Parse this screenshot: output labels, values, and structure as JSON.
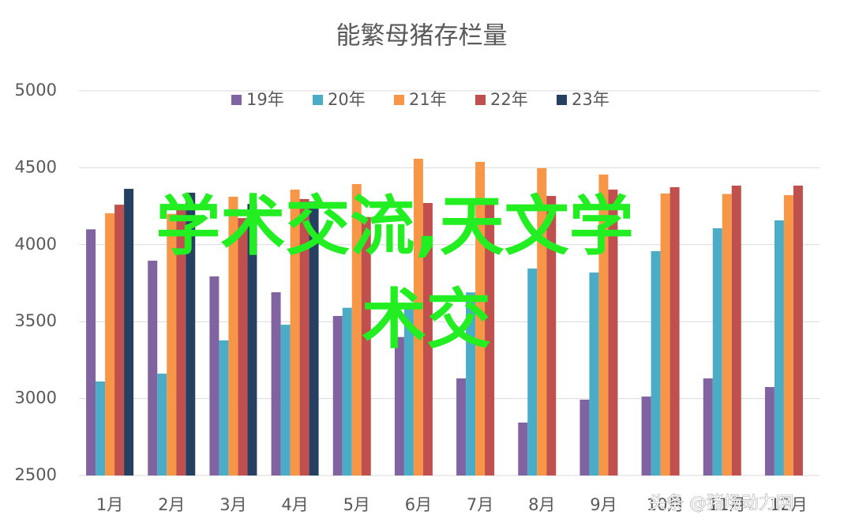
{
  "chart_data": {
    "type": "bar",
    "title": "能繁母猪存栏量",
    "categories": [
      "1月",
      "2月",
      "3月",
      "4月",
      "5月",
      "6月",
      "7月",
      "8月",
      "9月",
      "10月",
      "11月",
      "12月"
    ],
    "series": [
      {
        "name": "19年",
        "color": "#8064a2",
        "values": [
          4100,
          3896,
          3794,
          3691,
          3537,
          3400,
          3131,
          2844,
          2993,
          3013,
          3131,
          3075
        ]
      },
      {
        "name": "20年",
        "color": "#4bacc6",
        "values": [
          3111,
          3162,
          3378,
          3480,
          3590,
          3590,
          3690,
          3845,
          3819,
          3958,
          4107,
          4158
        ]
      },
      {
        "name": "21年",
        "color": "#f79646",
        "values": [
          4204,
          4200,
          4312,
          4358,
          4394,
          4559,
          4538,
          4497,
          4456,
          4333,
          4330,
          4322
        ]
      },
      {
        "name": "22年",
        "color": "#c0504d",
        "values": [
          4260,
          4255,
          4173,
          4297,
          4180,
          4271,
          4280,
          4317,
          4358,
          4374,
          4384,
          4384
        ]
      },
      {
        "name": "23年",
        "color": "#254061",
        "values": [
          4363,
          4338,
          4265,
          4280,
          null,
          null,
          null,
          null,
          null,
          null,
          null,
          null
        ]
      }
    ],
    "ylim": [
      2500,
      5000
    ],
    "yticks": [
      2500,
      3000,
      3500,
      4000,
      4500,
      5000
    ],
    "grid": true,
    "legend": "top",
    "annotations": [
      "学术交流,天文学",
      "术交",
      "头条 @猪场动力网"
    ]
  }
}
